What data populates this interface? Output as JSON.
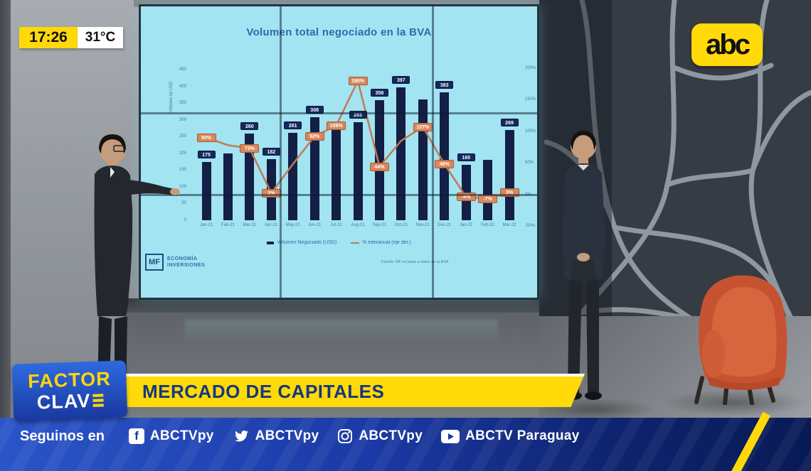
{
  "broadcast": {
    "time": "17:26",
    "temperature": "31°C",
    "channel_logo": "abc",
    "program_badge": {
      "line1": "FACTOR",
      "line2": "CLAV"
    },
    "headline": "MERCADO DE CAPITALES",
    "social_bar": {
      "label": "Seguinos en",
      "accounts": [
        {
          "icon": "facebook-icon",
          "handle": "ABCTVpy"
        },
        {
          "icon": "twitter-icon",
          "handle": "ABCTVpy"
        },
        {
          "icon": "instagram-icon",
          "handle": "ABCTVpy"
        },
        {
          "icon": "youtube-icon",
          "handle": "ABCTV Paraguay"
        }
      ]
    }
  },
  "screen": {
    "brand": {
      "logo": "MF",
      "line1": "ECONOMÍA",
      "line2": "INVERSIONES"
    },
    "source_note": "Fuente: MF en base a datos de la BVA"
  },
  "chart_data": {
    "type": "bar+line",
    "title": "Volumen total negociado en la BVA",
    "categories": [
      "Jan-21",
      "Feb-21",
      "Mar-21",
      "Apr-21",
      "May-21",
      "Jun-21",
      "Jul-21",
      "Aug-21",
      "Sep-21",
      "Oct-21",
      "Nov-21",
      "Dec-21",
      "Jan-22",
      "Feb-22",
      "Mar-22"
    ],
    "series": [
      {
        "name": "Volumen Negociado (USD)",
        "type": "bar",
        "axis": "left",
        "values": [
          175,
          200,
          260,
          182,
          261,
          308,
          285,
          293,
          358,
          397,
          360,
          383,
          165,
          180,
          269
        ],
        "labels": [
          "175",
          "",
          "260",
          "182",
          "261",
          "308",
          "",
          "293",
          "358",
          "397",
          "",
          "383",
          "165",
          "",
          "269"
        ]
      },
      {
        "name": "% interanual (eje der.)",
        "type": "line",
        "axis": "right",
        "values": [
          90,
          78,
          73,
          2,
          48,
          92,
          109,
          180,
          44,
          85,
          107,
          48,
          -4,
          -7,
          3
        ],
        "labels": [
          "90%",
          "",
          "73%",
          "2%",
          "",
          "92%",
          "109%",
          "180%",
          "44%",
          "",
          "107%",
          "48%",
          "-4%",
          "-7%",
          "3%"
        ]
      }
    ],
    "left_axis": {
      "label": "millones de USD",
      "min": 0,
      "max": 450,
      "step": 50
    },
    "right_axis": {
      "min": -50,
      "max": 200,
      "step": 50,
      "suffix": "%"
    },
    "colors": {
      "bar": "#131f45",
      "line": "#c07a52",
      "bar_label_bg": "#15295e",
      "line_label_bg": "#d8885c",
      "background": "#a2e4f1"
    }
  }
}
